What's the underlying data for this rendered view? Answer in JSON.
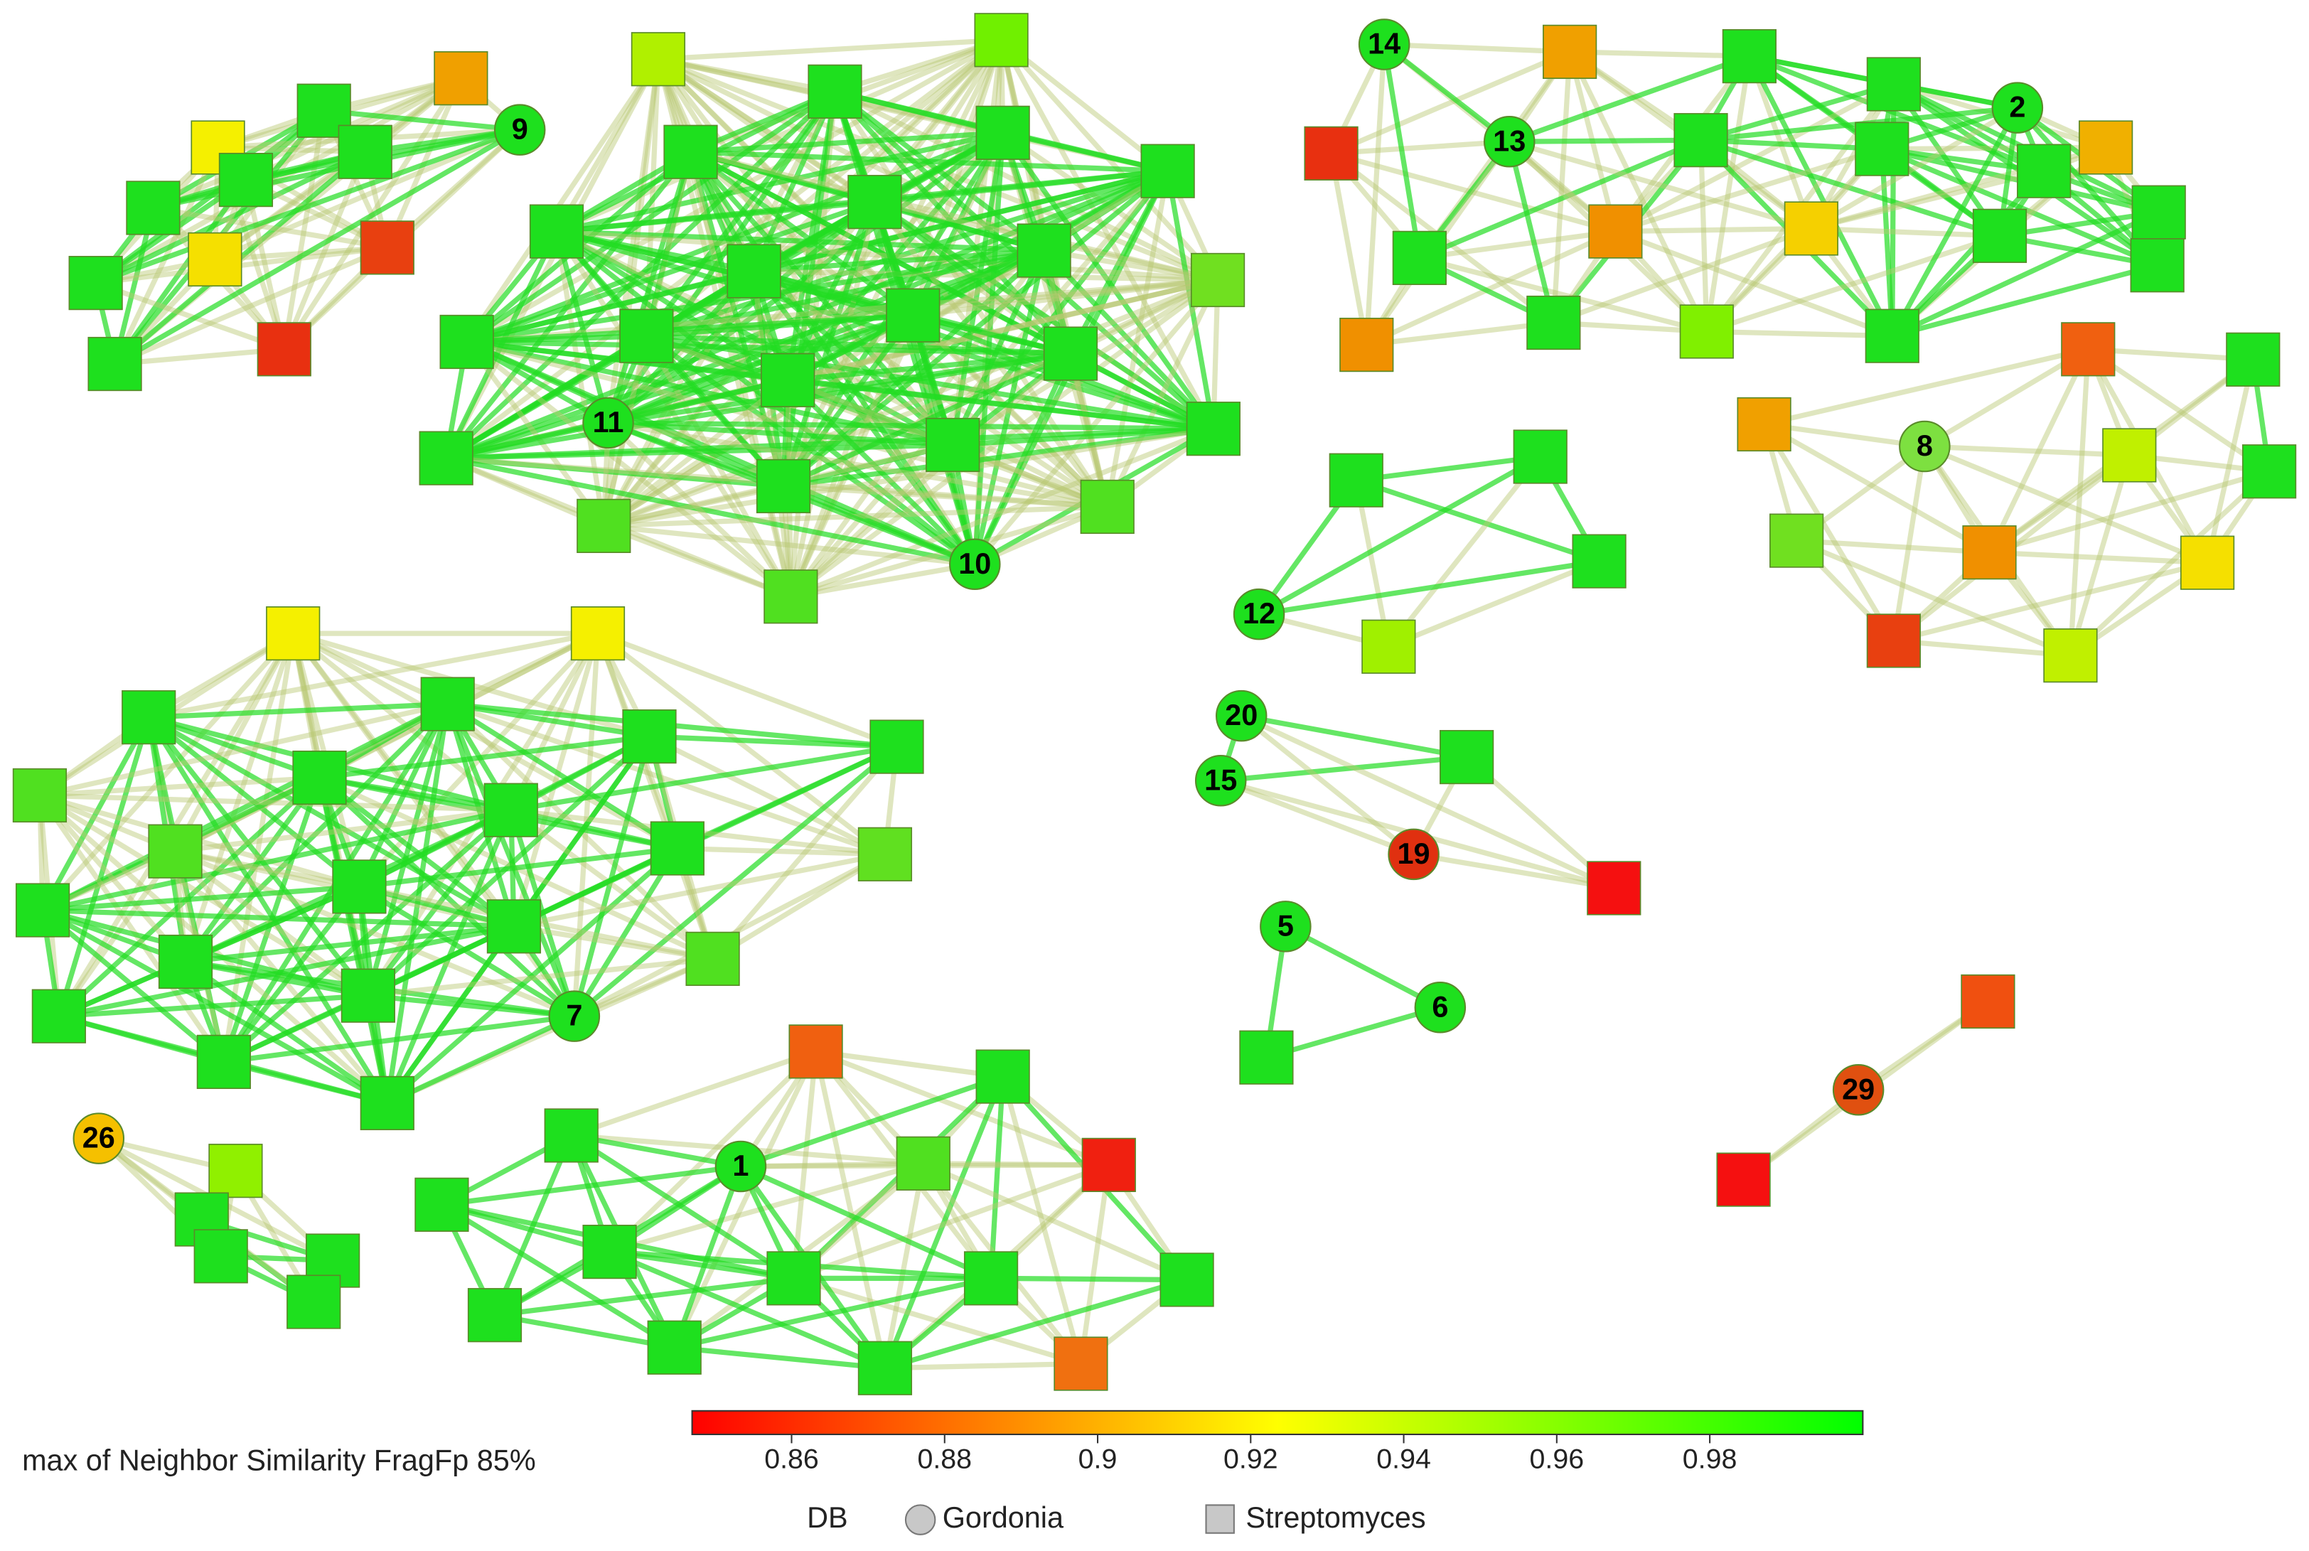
{
  "legend": {
    "title": "max of Neighbor Similarity FragFp 85%",
    "colorbar": {
      "range": [
        0.847,
        1.0
      ],
      "ticks": [
        0.86,
        0.88,
        0.9,
        0.92,
        0.94,
        0.96,
        0.98
      ]
    },
    "shape_legend": {
      "title": "DB",
      "items": [
        "Gordonia",
        "Streptomyces"
      ]
    }
  },
  "nodes": [
    {
      "label": "14"
    },
    {
      "label": "13"
    },
    {
      "label": "2"
    },
    {
      "label": "9"
    },
    {
      "label": "11"
    },
    {
      "label": "10"
    },
    {
      "label": "8"
    },
    {
      "label": "12"
    },
    {
      "label": "20"
    },
    {
      "label": "15"
    },
    {
      "label": "19"
    },
    {
      "label": "5"
    },
    {
      "label": "6"
    },
    {
      "label": "7"
    },
    {
      "label": "1"
    },
    {
      "label": "26"
    },
    {
      "label": "29"
    }
  ]
}
